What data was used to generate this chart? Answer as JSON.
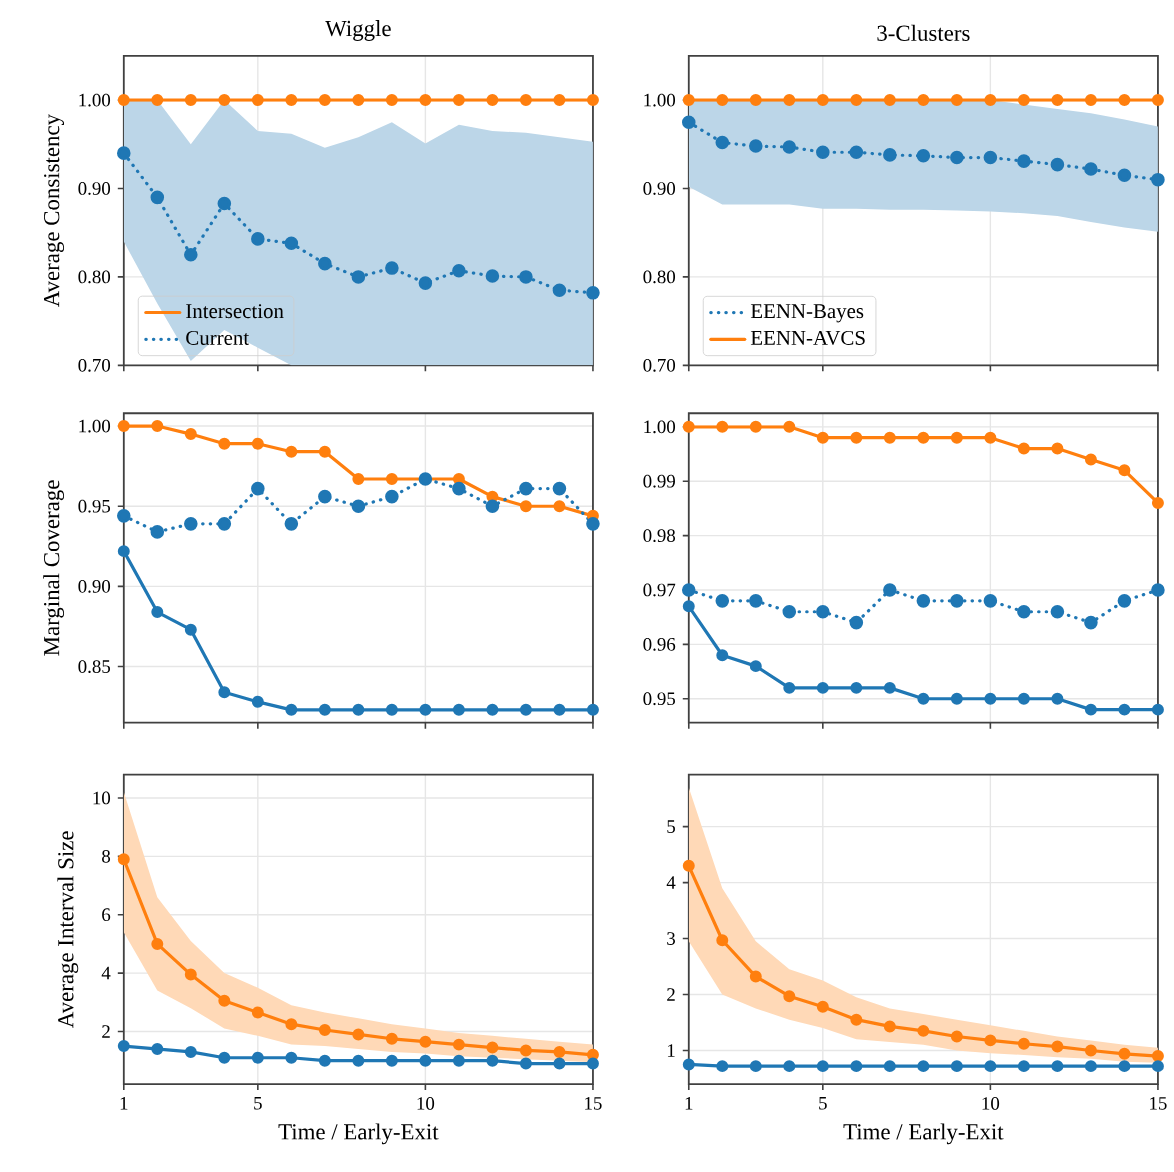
{
  "chart_data": [
    {
      "type": "line",
      "title": "Wiggle",
      "ylabel": "Average Consistency",
      "x": [
        1,
        2,
        3,
        4,
        5,
        6,
        7,
        8,
        9,
        10,
        11,
        12,
        13,
        14,
        15
      ],
      "xlim": [
        1,
        15
      ],
      "xticks": [
        1,
        5,
        10,
        15
      ],
      "ylim": [
        0.7,
        1.05
      ],
      "yticks": [
        {
          "value": 0.7,
          "label": "0.70"
        },
        {
          "value": 0.8,
          "label": "0.80"
        },
        {
          "value": 0.9,
          "label": "0.90"
        },
        {
          "value": 1.0,
          "label": "1.00"
        }
      ],
      "tick_labels": "y",
      "grid": true,
      "marker": "circle",
      "legend": "bottom left",
      "series": [
        {
          "name": "Intersection",
          "color": "#ff7f0e",
          "line_style": "solid",
          "values": [
            1.0,
            1.0,
            1.0,
            1.0,
            1.0,
            1.0,
            1.0,
            1.0,
            1.0,
            1.0,
            1.0,
            1.0,
            1.0,
            1.0,
            1.0
          ]
        },
        {
          "name": "Current",
          "color": "#1f77b4",
          "line_style": "dotted",
          "values": [
            0.94,
            0.89,
            0.825,
            0.883,
            0.843,
            0.838,
            0.815,
            0.8,
            0.81,
            0.793,
            0.807,
            0.801,
            0.8,
            0.785,
            0.782
          ],
          "upper": [
            1.0,
            1.0,
            0.95,
            1.0,
            0.965,
            0.962,
            0.946,
            0.958,
            0.975,
            0.951,
            0.972,
            0.965,
            0.963,
            0.958,
            0.953
          ],
          "lower": [
            0.84,
            0.77,
            0.705,
            0.74,
            0.72,
            0.7,
            0.7,
            0.7,
            0.7,
            0.7,
            0.7,
            0.7,
            0.7,
            0.7,
            0.7
          ]
        }
      ]
    },
    {
      "type": "line",
      "title": "3-Clusters",
      "x": [
        1,
        2,
        3,
        4,
        5,
        6,
        7,
        8,
        9,
        10,
        11,
        12,
        13,
        14,
        15
      ],
      "xlim": [
        1,
        15
      ],
      "xticks": [
        1,
        5,
        10,
        15
      ],
      "ylim": [
        0.7,
        1.05
      ],
      "yticks": [
        {
          "value": 0.7,
          "label": "0.70"
        },
        {
          "value": 0.8,
          "label": "0.80"
        },
        {
          "value": 0.9,
          "label": "0.90"
        },
        {
          "value": 1.0,
          "label": "1.00"
        }
      ],
      "tick_labels": "y",
      "grid": true,
      "marker": "circle",
      "legend": "bottom left",
      "series": [
        {
          "name": "EENN-Bayes",
          "color": "#1f77b4",
          "line_style": "dotted",
          "values": [
            0.975,
            0.952,
            0.948,
            0.947,
            0.941,
            0.941,
            0.938,
            0.937,
            0.935,
            0.935,
            0.931,
            0.927,
            0.922,
            0.915,
            0.91
          ],
          "upper": [
            1.0,
            1.0,
            1.0,
            1.0,
            1.0,
            1.0,
            1.0,
            1.0,
            1.0,
            1.0,
            0.995,
            0.99,
            0.985,
            0.978,
            0.97
          ],
          "lower": [
            0.902,
            0.882,
            0.882,
            0.882,
            0.877,
            0.877,
            0.876,
            0.876,
            0.875,
            0.874,
            0.872,
            0.869,
            0.862,
            0.856,
            0.851
          ]
        },
        {
          "name": "EENN-AVCS",
          "color": "#ff7f0e",
          "line_style": "solid",
          "values": [
            1.0,
            1.0,
            1.0,
            1.0,
            1.0,
            1.0,
            1.0,
            1.0,
            1.0,
            1.0,
            1.0,
            1.0,
            1.0,
            1.0,
            1.0
          ]
        }
      ]
    },
    {
      "type": "line",
      "ylabel": "Marginal Coverage",
      "x": [
        1,
        2,
        3,
        4,
        5,
        6,
        7,
        8,
        9,
        10,
        11,
        12,
        13,
        14,
        15
      ],
      "xlim": [
        1,
        15
      ],
      "xticks": [
        1,
        5,
        10,
        15
      ],
      "ylim": [
        0.815,
        1.008
      ],
      "yticks": [
        {
          "value": 0.85,
          "label": "0.85"
        },
        {
          "value": 0.9,
          "label": "0.90"
        },
        {
          "value": 0.95,
          "label": "0.95"
        },
        {
          "value": 1.0,
          "label": "1.00"
        }
      ],
      "tick_labels": "y",
      "grid": true,
      "marker": "circle",
      "series": [
        {
          "color": "#ff7f0e",
          "line_style": "solid",
          "values": [
            1.0,
            1.0,
            0.995,
            0.989,
            0.989,
            0.984,
            0.984,
            0.967,
            0.967,
            0.967,
            0.967,
            0.956,
            0.95,
            0.95,
            0.944
          ]
        },
        {
          "color": "#1f77b4",
          "line_style": "solid",
          "values": [
            0.922,
            0.884,
            0.873,
            0.834,
            0.828,
            0.823,
            0.823,
            0.823,
            0.823,
            0.823,
            0.823,
            0.823,
            0.823,
            0.823,
            0.823
          ]
        },
        {
          "color": "#1f77b4",
          "line_style": "dotted",
          "values": [
            0.944,
            0.934,
            0.939,
            0.939,
            0.961,
            0.939,
            0.956,
            0.95,
            0.956,
            0.967,
            0.961,
            0.95,
            0.961,
            0.961,
            0.939
          ]
        }
      ]
    },
    {
      "type": "line",
      "x": [
        1,
        2,
        3,
        4,
        5,
        6,
        7,
        8,
        9,
        10,
        11,
        12,
        13,
        14,
        15
      ],
      "xlim": [
        1,
        15
      ],
      "xticks": [
        1,
        5,
        10,
        15
      ],
      "ylim": [
        0.9456,
        1.0025
      ],
      "yticks": [
        {
          "value": 0.95,
          "label": "0.95"
        },
        {
          "value": 0.96,
          "label": "0.96"
        },
        {
          "value": 0.97,
          "label": "0.97"
        },
        {
          "value": 0.98,
          "label": "0.98"
        },
        {
          "value": 0.99,
          "label": "0.99"
        },
        {
          "value": 1.0,
          "label": "1.00"
        }
      ],
      "tick_labels": "y",
      "grid": true,
      "marker": "circle",
      "series": [
        {
          "color": "#ff7f0e",
          "line_style": "solid",
          "values": [
            1.0,
            1.0,
            1.0,
            1.0,
            0.998,
            0.998,
            0.998,
            0.998,
            0.998,
            0.998,
            0.996,
            0.996,
            0.994,
            0.992,
            0.986
          ]
        },
        {
          "color": "#1f77b4",
          "line_style": "solid",
          "values": [
            0.967,
            0.958,
            0.956,
            0.952,
            0.952,
            0.952,
            0.952,
            0.95,
            0.95,
            0.95,
            0.95,
            0.95,
            0.948,
            0.948,
            0.948
          ]
        },
        {
          "color": "#1f77b4",
          "line_style": "dotted",
          "values": [
            0.97,
            0.968,
            0.968,
            0.966,
            0.966,
            0.964,
            0.97,
            0.968,
            0.968,
            0.968,
            0.966,
            0.966,
            0.964,
            0.968,
            0.97
          ]
        }
      ]
    },
    {
      "type": "line",
      "ylabel": "Average Interval Size",
      "xlabel": "Time / Early-Exit",
      "x": [
        1,
        2,
        3,
        4,
        5,
        6,
        7,
        8,
        9,
        10,
        11,
        12,
        13,
        14,
        15
      ],
      "xlim": [
        1,
        15
      ],
      "xticks": [
        1,
        5,
        10,
        15
      ],
      "ylim": [
        0.2,
        10.8
      ],
      "yticks": [
        2,
        4,
        6,
        8,
        10
      ],
      "grid": true,
      "marker": "circle",
      "series": [
        {
          "color": "#ff7f0e",
          "line_style": "solid",
          "values": [
            7.9,
            5.0,
            3.95,
            3.05,
            2.65,
            2.25,
            2.05,
            1.9,
            1.75,
            1.65,
            1.55,
            1.45,
            1.35,
            1.3,
            1.2
          ],
          "upper": [
            10.2,
            6.6,
            5.1,
            4.0,
            3.5,
            2.9,
            2.65,
            2.45,
            2.25,
            2.1,
            1.95,
            1.85,
            1.75,
            1.65,
            1.55
          ],
          "lower": [
            5.4,
            3.4,
            2.8,
            2.1,
            1.85,
            1.55,
            1.5,
            1.4,
            1.3,
            1.25,
            1.15,
            1.1,
            1.05,
            1.0,
            0.95
          ]
        },
        {
          "color": "#1f77b4",
          "line_style": "solid",
          "values": [
            1.5,
            1.4,
            1.3,
            1.1,
            1.1,
            1.1,
            1.0,
            1.0,
            1.0,
            1.0,
            1.0,
            1.0,
            0.9,
            0.9,
            0.9
          ]
        }
      ]
    },
    {
      "type": "line",
      "xlabel": "Time / Early-Exit",
      "x": [
        1,
        2,
        3,
        4,
        5,
        6,
        7,
        8,
        9,
        10,
        11,
        12,
        13,
        14,
        15
      ],
      "xlim": [
        1,
        15
      ],
      "xticks": [
        1,
        5,
        10,
        15
      ],
      "ylim": [
        0.4,
        5.93
      ],
      "yticks": [
        1,
        2,
        3,
        4,
        5
      ],
      "grid": true,
      "marker": "circle",
      "series": [
        {
          "color": "#ff7f0e",
          "line_style": "solid",
          "values": [
            4.3,
            2.97,
            2.32,
            1.97,
            1.78,
            1.55,
            1.43,
            1.35,
            1.25,
            1.18,
            1.12,
            1.07,
            1.0,
            0.94,
            0.9
          ],
          "upper": [
            5.7,
            3.9,
            2.95,
            2.45,
            2.25,
            1.95,
            1.75,
            1.65,
            1.55,
            1.45,
            1.35,
            1.25,
            1.18,
            1.1,
            1.05
          ],
          "lower": [
            2.95,
            2.0,
            1.75,
            1.55,
            1.4,
            1.2,
            1.15,
            1.1,
            1.0,
            0.95,
            0.92,
            0.88,
            0.85,
            0.8,
            0.78
          ]
        },
        {
          "color": "#1f77b4",
          "line_style": "solid",
          "values": [
            0.75,
            0.72,
            0.72,
            0.72,
            0.72,
            0.72,
            0.72,
            0.72,
            0.72,
            0.72,
            0.72,
            0.72,
            0.72,
            0.72,
            0.72
          ]
        }
      ]
    }
  ]
}
